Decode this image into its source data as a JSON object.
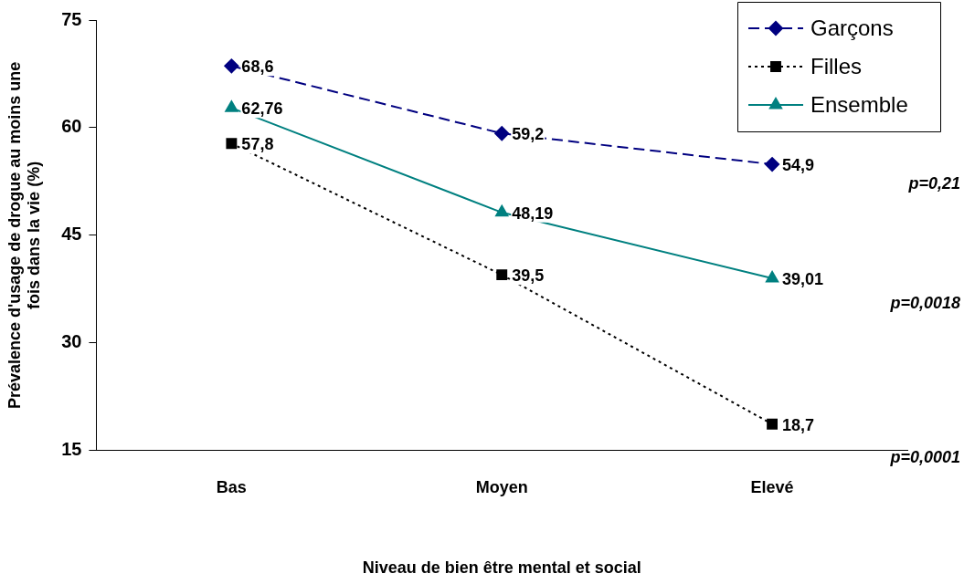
{
  "chart_data": {
    "type": "line",
    "xlabel": "Niveau de bien être mental et social",
    "ylabel": "Prévalence d'usage de drogue au moins une fois dans la vie (%)",
    "categories": [
      "Bas",
      "Moyen",
      "Elevé"
    ],
    "series": [
      {
        "name": "Garçons",
        "color": "#000080",
        "values": [
          68.6,
          59.2,
          54.9
        ],
        "value_labels": [
          "68,6",
          "59,2",
          "54,9"
        ],
        "marker": "diamond",
        "line_style": "dashed"
      },
      {
        "name": "Filles",
        "color": "#000000",
        "values": [
          57.8,
          39.5,
          18.7
        ],
        "value_labels": [
          "57,8",
          "39,5",
          "18,7"
        ],
        "marker": "square",
        "line_style": "dotted"
      },
      {
        "name": "Ensemble",
        "color": "#008080",
        "values": [
          62.76,
          48.19,
          39.01
        ],
        "value_labels": [
          "62,76",
          "48,19",
          "39,01"
        ],
        "marker": "triangle",
        "line_style": "solid"
      }
    ],
    "ylim": [
      15,
      75
    ],
    "yticks": [
      15,
      30,
      45,
      60,
      75
    ],
    "grid": false,
    "legend": "top right",
    "annotations": [
      "p=0,21",
      "p=0,0018",
      "p=0,0001"
    ]
  }
}
